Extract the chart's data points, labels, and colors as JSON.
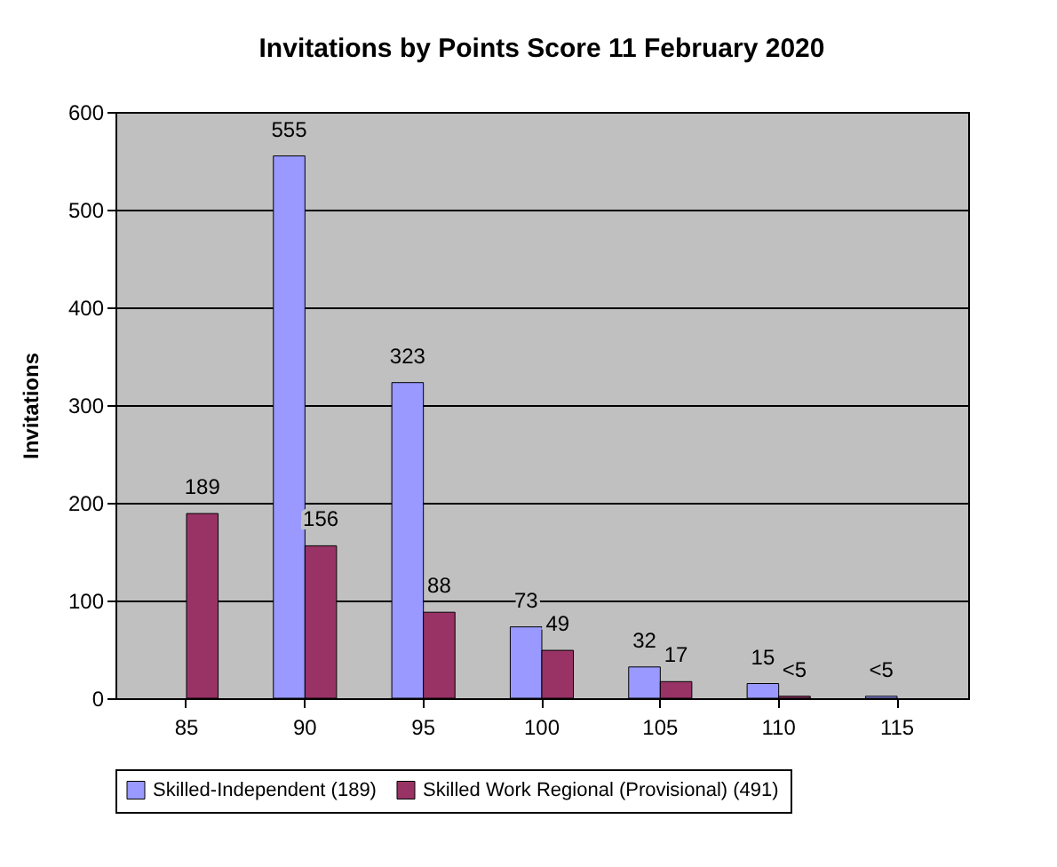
{
  "chart_data": {
    "type": "bar",
    "title": "Invitations by Points Score 11 February 2020",
    "ylabel": "Invitations",
    "categories": [
      "85",
      "90",
      "95",
      "100",
      "105",
      "110",
      "115"
    ],
    "series": [
      {
        "name": "Skilled-Independent (189)",
        "color": "#9999ff",
        "values": [
          null,
          555,
          323,
          73,
          32,
          15,
          2
        ],
        "value_labels": [
          null,
          "555",
          "323",
          "73",
          "32",
          "15",
          "<5"
        ]
      },
      {
        "name": "Skilled Work Regional (Provisional) (491)",
        "color": "#993366",
        "values": [
          189,
          156,
          88,
          49,
          17,
          2,
          null
        ],
        "value_labels": [
          "189",
          "156",
          "88",
          "49",
          "17",
          "<5",
          null
        ]
      }
    ],
    "ylim": [
      0,
      600
    ],
    "yticks": [
      0,
      100,
      200,
      300,
      400,
      500,
      600
    ],
    "grid": "y",
    "legend": "bottom"
  }
}
